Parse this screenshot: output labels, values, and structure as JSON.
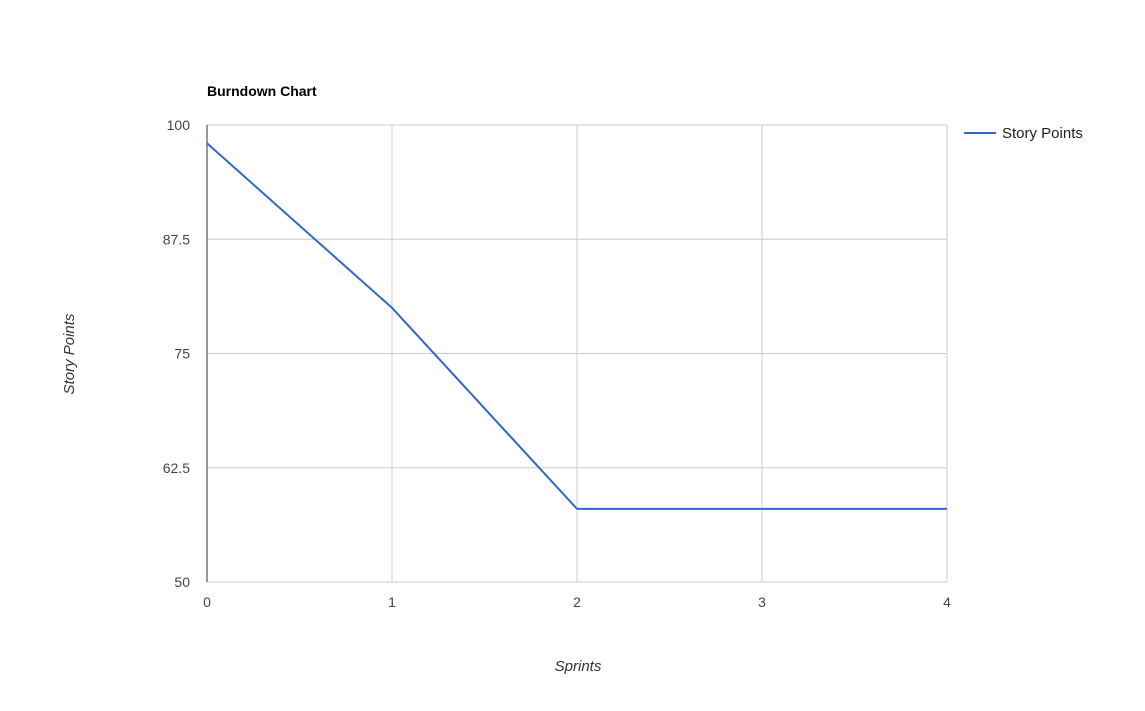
{
  "chart_data": {
    "type": "line",
    "title": "Burndown Chart",
    "xlabel": "Sprints",
    "ylabel": "Story Points",
    "x": [
      0,
      1,
      2,
      3,
      4
    ],
    "xticks": [
      "0",
      "1",
      "2",
      "3",
      "4"
    ],
    "yticks": [
      "50",
      "62.5",
      "75",
      "87.5",
      "100"
    ],
    "xlim": [
      0,
      4
    ],
    "ylim": [
      50,
      100
    ],
    "grid": true,
    "legend_position": "right",
    "series": [
      {
        "name": "Story Points",
        "color": "#3366cc",
        "values": [
          98,
          80,
          58,
          58,
          58
        ]
      }
    ]
  }
}
